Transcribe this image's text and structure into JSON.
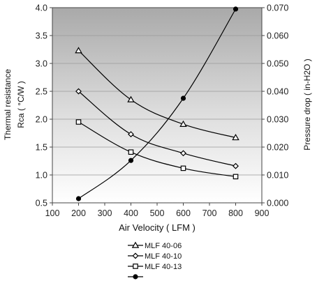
{
  "chart_data": {
    "type": "line",
    "xlabel": "Air Velocity ( LFM )",
    "ylabel_left_line1": "Thermal resistance",
    "ylabel_left_line2": "Rca ( °C/W )",
    "ylabel_right": "Pressure drop ( in-H2O )",
    "xlim": [
      100,
      900
    ],
    "xticks": [
      "100",
      "200",
      "300",
      "400",
      "500",
      "600",
      "700",
      "800",
      "900"
    ],
    "ylim_left": [
      0.5,
      4.0
    ],
    "yticks_left": [
      "0.5",
      "1.0",
      "1.5",
      "2.0",
      "2.5",
      "3.0",
      "3.5",
      "4.0"
    ],
    "ylim_right": [
      0.0,
      0.07
    ],
    "yticks_right": [
      "0.000",
      "0.010",
      "0.020",
      "0.030",
      "0.040",
      "0.050",
      "0.060",
      "0.070"
    ],
    "grid": "horizontal",
    "legend_position": "below",
    "background": "gradient-gray",
    "series": [
      {
        "name": "MLF 40-06",
        "marker": "triangle",
        "axis": "left",
        "color": "#000000",
        "x": [
          200,
          400,
          600,
          800
        ],
        "y": [
          3.23,
          2.35,
          1.91,
          1.67
        ]
      },
      {
        "name": "MLF 40-10",
        "marker": "diamond",
        "axis": "left",
        "color": "#000000",
        "x": [
          200,
          400,
          600,
          800
        ],
        "y": [
          2.5,
          1.73,
          1.39,
          1.16
        ]
      },
      {
        "name": "MLF 40-13",
        "marker": "square",
        "axis": "left",
        "color": "#000000",
        "x": [
          200,
          400,
          600,
          800
        ],
        "y": [
          1.95,
          1.41,
          1.12,
          0.97
        ]
      },
      {
        "name": "",
        "marker": "circle",
        "axis": "right",
        "color": "#000000",
        "x": [
          200,
          400,
          600,
          800
        ],
        "y": [
          0.0015,
          0.0152,
          0.0375,
          0.0695
        ]
      }
    ]
  }
}
